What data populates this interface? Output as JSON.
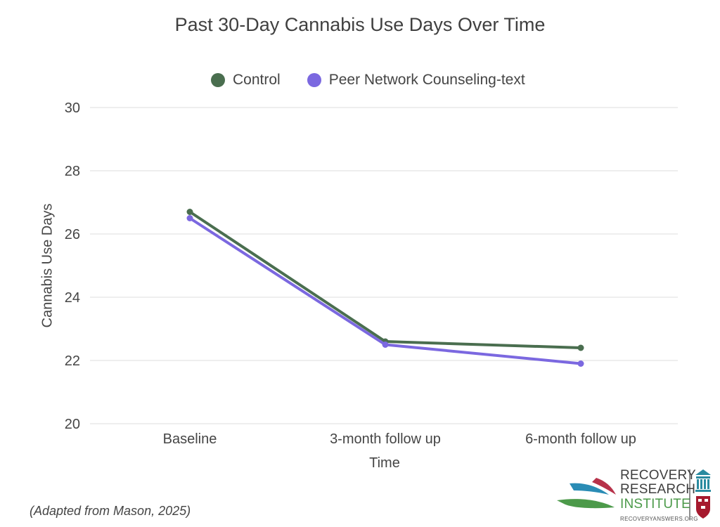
{
  "chart_data": {
    "type": "line",
    "title": "Past 30-Day Cannabis Use Days Over Time",
    "xlabel": "Time",
    "ylabel": "Cannabis Use Days",
    "categories": [
      "Baseline",
      "3-month follow up",
      "6-month follow up"
    ],
    "ylim": [
      20,
      30
    ],
    "yticks": [
      20,
      22,
      24,
      26,
      28,
      30
    ],
    "grid": true,
    "legend_position": "top",
    "series": [
      {
        "name": "Control",
        "color": "#4a6e4f",
        "values": [
          26.7,
          22.6,
          22.4
        ]
      },
      {
        "name": "Peer Network Counseling-text",
        "color": "#7b68e0",
        "values": [
          26.5,
          22.5,
          21.9
        ]
      }
    ]
  },
  "source_note": "(Adapted from Mason, 2025)",
  "logo": {
    "line1": "RECOVERY",
    "line2": "RESEARCH",
    "line3": "INSTITUTE",
    "url": "RECOVERYANSWERS.ORG"
  }
}
